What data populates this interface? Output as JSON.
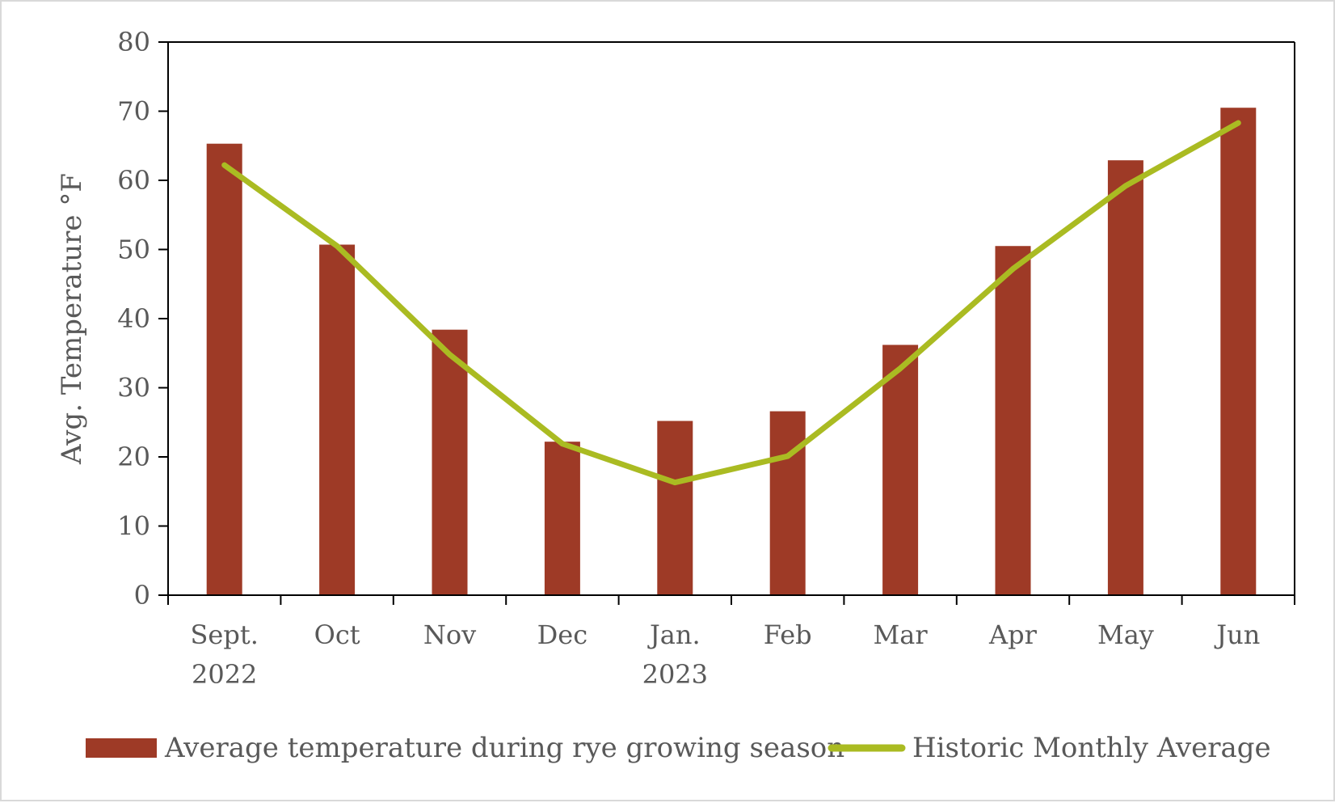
{
  "chart_data": {
    "type": "bar",
    "categories": [
      [
        "Sept.",
        "2022"
      ],
      [
        "Oct"
      ],
      [
        "Nov"
      ],
      [
        "Dec"
      ],
      [
        "Jan.",
        "2023"
      ],
      [
        "Feb"
      ],
      [
        "Mar"
      ],
      [
        "Apr"
      ],
      [
        "May"
      ],
      [
        "Jun"
      ]
    ],
    "series": [
      {
        "name": "Average temperature during rye growing season",
        "type": "bar",
        "color": "#9e3a26",
        "values": [
          65.3,
          50.7,
          38.4,
          22.2,
          25.2,
          26.6,
          36.2,
          50.5,
          62.9,
          70.5
        ]
      },
      {
        "name": "Historic Monthly Average",
        "type": "line",
        "color": "#aabb22",
        "values": [
          62.2,
          50.5,
          34.8,
          21.9,
          16.3,
          20.1,
          32.8,
          47.2,
          59.2,
          68.3
        ]
      }
    ],
    "title": "",
    "xlabel": "",
    "ylabel": "Avg. Temperature °F",
    "ylim": [
      0,
      80
    ],
    "yticks": [
      "0",
      "10",
      "20",
      "30",
      "40",
      "50",
      "60",
      "70",
      "80"
    ],
    "grid": false,
    "legend_position": "bottom",
    "axis_color": "#000000",
    "text_color": "#595959"
  }
}
